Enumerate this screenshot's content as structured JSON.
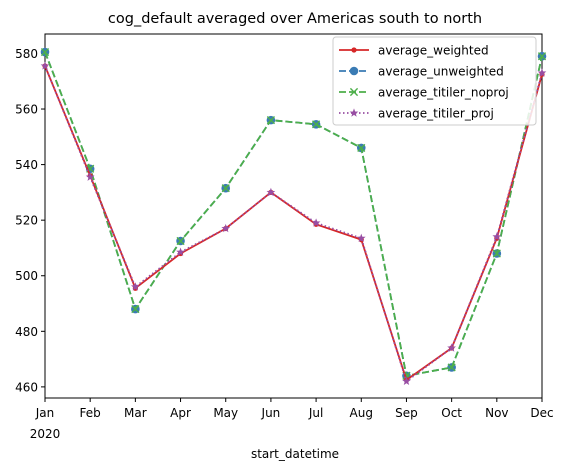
{
  "chart_data": {
    "type": "line",
    "title": "cog_default averaged over Americas south to north",
    "xlabel": "start_datetime",
    "ylabel": "",
    "categories": [
      "Jan",
      "Feb",
      "Mar",
      "Apr",
      "May",
      "Jun",
      "Jul",
      "Aug",
      "Sep",
      "Oct",
      "Nov",
      "Dec"
    ],
    "x_year_label": "2020",
    "ylim": [
      456,
      587
    ],
    "yticks": [
      460,
      480,
      500,
      520,
      540,
      560,
      580
    ],
    "grid": false,
    "legend_position": "top-right",
    "series": [
      {
        "name": "average_weighted",
        "color": "#d62728",
        "linestyle": "solid",
        "marker": "dot",
        "values": [
          575.5,
          536,
          495.5,
          508,
          517,
          530,
          518.5,
          513,
          462.5,
          474,
          513.5,
          572.5
        ]
      },
      {
        "name": "average_unweighted",
        "color": "#3a7bb4",
        "linestyle": "dashed",
        "marker": "circle",
        "values": [
          580.5,
          538.5,
          488,
          512.5,
          531.5,
          556,
          554.5,
          546,
          464,
          467,
          508,
          579
        ]
      },
      {
        "name": "average_titiler_noproj",
        "color": "#4daf4a",
        "linestyle": "dashed",
        "marker": "x",
        "values": [
          580.5,
          538.5,
          488,
          512.5,
          531.5,
          556,
          554.5,
          546,
          464,
          467,
          508,
          579
        ]
      },
      {
        "name": "average_titiler_proj",
        "color": "#984ea3",
        "linestyle": "dotted",
        "marker": "star",
        "values": [
          575.5,
          535.5,
          496,
          508.5,
          517,
          530,
          519,
          513.5,
          462,
          474,
          514,
          573
        ]
      }
    ]
  }
}
